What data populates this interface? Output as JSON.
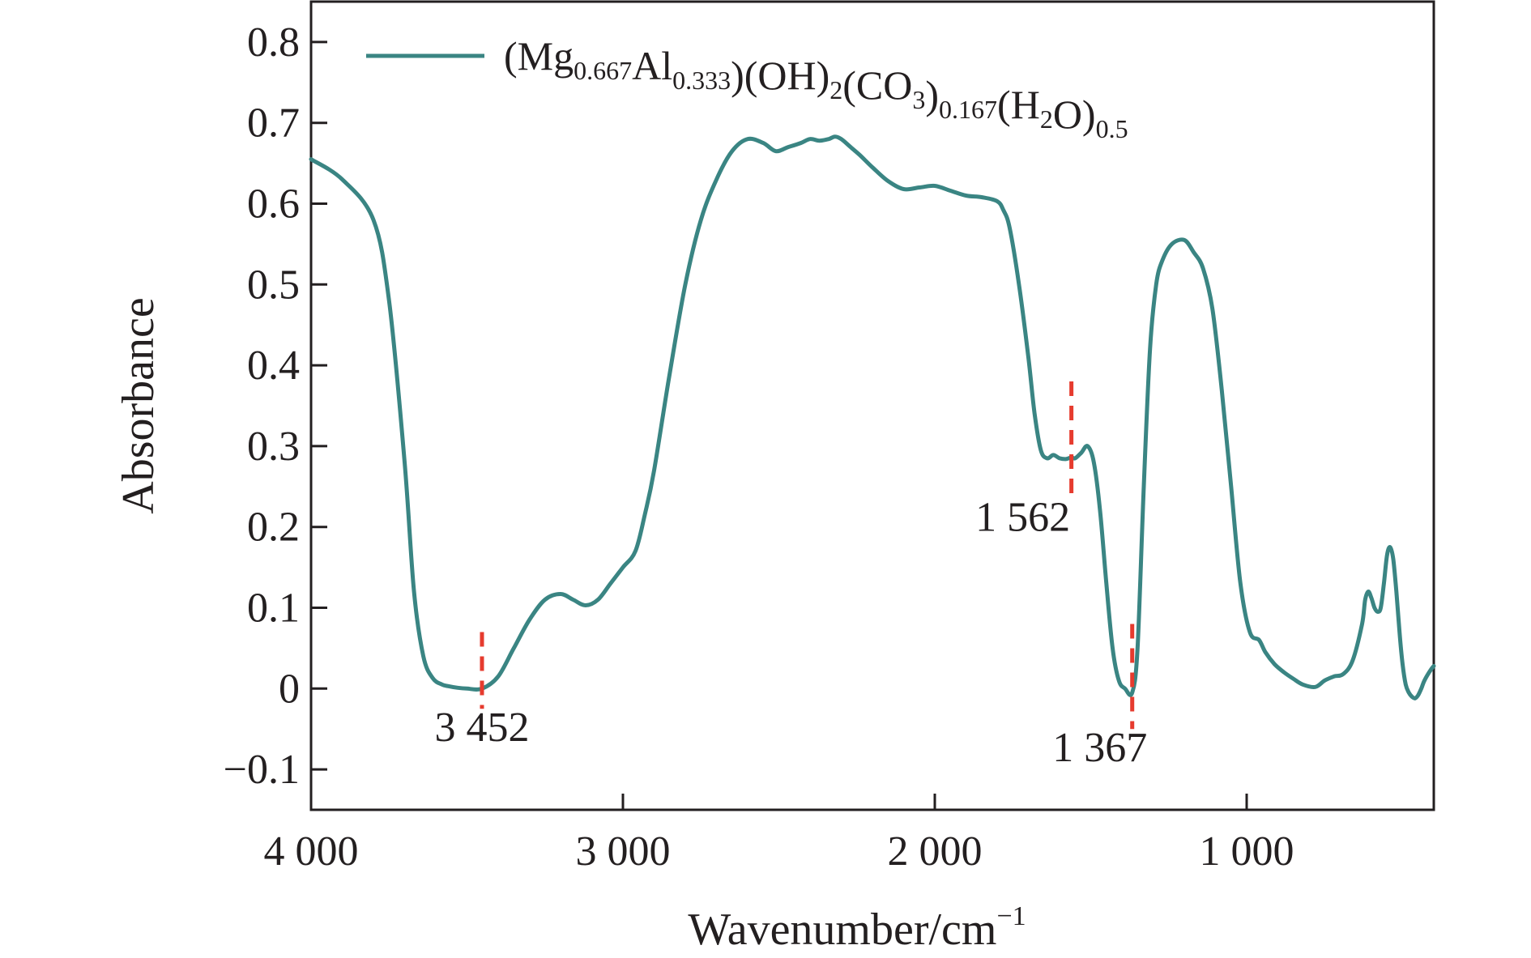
{
  "chart_data": {
    "type": "line",
    "xlabel": "Wavenumber/cm",
    "xlabel_sup": "−1",
    "ylabel": "Absorbance",
    "xlim": [
      4000,
      400
    ],
    "ylim": [
      -0.15,
      0.85
    ],
    "x_reversed": true,
    "x_ticks": [
      {
        "value": 4000,
        "label": "4 000"
      },
      {
        "value": 3000,
        "label": "3 000"
      },
      {
        "value": 2000,
        "label": "2 000"
      },
      {
        "value": 1000,
        "label": "1 000"
      }
    ],
    "y_ticks": [
      {
        "value": 0.8,
        "label": "0.8"
      },
      {
        "value": 0.7,
        "label": "0.7"
      },
      {
        "value": 0.6,
        "label": "0.6"
      },
      {
        "value": 0.5,
        "label": "0.5"
      },
      {
        "value": 0.4,
        "label": "0.4"
      },
      {
        "value": 0.3,
        "label": "0.3"
      },
      {
        "value": 0.2,
        "label": "0.2"
      },
      {
        "value": 0.1,
        "label": "0.1"
      },
      {
        "value": 0,
        "label": "0"
      },
      {
        "value": -0.1,
        "label": "−0.1"
      }
    ],
    "grid": false,
    "legend_position": "top",
    "series": [
      {
        "legend_parts": [
          {
            "t": "(Mg",
            "sub": "0.667"
          },
          {
            "t": "Al",
            "sub": "0.333"
          },
          {
            "t": ")(OH)",
            "sub": "2"
          },
          {
            "t": "(CO",
            "sub": "3"
          },
          {
            "t": ")",
            "sub": "0.167"
          },
          {
            "t": "(H",
            "sub": "2"
          },
          {
            "t": "O)",
            "sub": "0.5"
          }
        ],
        "color": "#3a8583",
        "x": [
          4000,
          3900,
          3800,
          3750,
          3700,
          3670,
          3640,
          3610,
          3580,
          3560,
          3530,
          3500,
          3452,
          3400,
          3350,
          3300,
          3250,
          3200,
          3160,
          3120,
          3080,
          3040,
          3000,
          2960,
          2930,
          2900,
          2850,
          2800,
          2750,
          2700,
          2650,
          2600,
          2550,
          2510,
          2470,
          2430,
          2400,
          2370,
          2340,
          2320,
          2300,
          2270,
          2240,
          2200,
          2150,
          2100,
          2050,
          2000,
          1950,
          1900,
          1850,
          1800,
          1780,
          1760,
          1730,
          1700,
          1680,
          1660,
          1640,
          1620,
          1600,
          1580,
          1562,
          1550,
          1530,
          1510,
          1490,
          1470,
          1450,
          1430,
          1410,
          1390,
          1367,
          1350,
          1330,
          1310,
          1290,
          1270,
          1240,
          1200,
          1170,
          1140,
          1110,
          1080,
          1050,
          1020,
          990,
          960,
          940,
          910,
          880,
          850,
          820,
          780,
          750,
          720,
          690,
          660,
          630,
          620,
          610,
          600,
          590,
          580,
          570,
          560,
          550,
          540,
          530,
          520,
          510,
          500,
          490,
          480,
          470,
          460,
          450,
          440,
          430,
          410,
          400
        ],
        "y": [
          0.655,
          0.63,
          0.58,
          0.48,
          0.28,
          0.12,
          0.04,
          0.013,
          0.005,
          0.003,
          0.001,
          0.0,
          0.0,
          0.015,
          0.05,
          0.085,
          0.11,
          0.117,
          0.11,
          0.103,
          0.11,
          0.13,
          0.15,
          0.17,
          0.215,
          0.27,
          0.39,
          0.5,
          0.58,
          0.63,
          0.665,
          0.68,
          0.675,
          0.665,
          0.67,
          0.675,
          0.68,
          0.678,
          0.68,
          0.683,
          0.68,
          0.67,
          0.66,
          0.645,
          0.628,
          0.618,
          0.62,
          0.622,
          0.616,
          0.61,
          0.608,
          0.603,
          0.592,
          0.57,
          0.5,
          0.41,
          0.34,
          0.295,
          0.285,
          0.289,
          0.285,
          0.284,
          0.286,
          0.285,
          0.292,
          0.3,
          0.28,
          0.22,
          0.13,
          0.05,
          0.01,
          0.0,
          -0.005,
          0.05,
          0.25,
          0.42,
          0.5,
          0.53,
          0.55,
          0.555,
          0.54,
          0.52,
          0.47,
          0.37,
          0.25,
          0.13,
          0.07,
          0.06,
          0.045,
          0.03,
          0.02,
          0.012,
          0.005,
          0.002,
          0.01,
          0.015,
          0.018,
          0.035,
          0.08,
          0.11,
          0.12,
          0.112,
          0.1,
          0.095,
          0.1,
          0.13,
          0.165,
          0.175,
          0.16,
          0.12,
          0.07,
          0.03,
          0.005,
          -0.005,
          -0.01,
          -0.012,
          -0.008,
          0.0,
          0.01,
          0.023,
          0.028
        ]
      }
    ],
    "annotations": [
      {
        "label": "3 452",
        "x": 3452,
        "marker_y": [
          -0.025,
          0.07
        ],
        "label_y": -0.065,
        "label_dx": 0
      },
      {
        "label": "1 562",
        "x": 1562,
        "marker_y": [
          0.235,
          0.38
        ],
        "label_y": 0.195,
        "label_dx": -60
      },
      {
        "label": "1 367",
        "x": 1367,
        "marker_y": [
          -0.05,
          0.08
        ],
        "label_y": -0.09,
        "label_dx": -40
      }
    ],
    "annotation_color": "#e63b2e"
  }
}
